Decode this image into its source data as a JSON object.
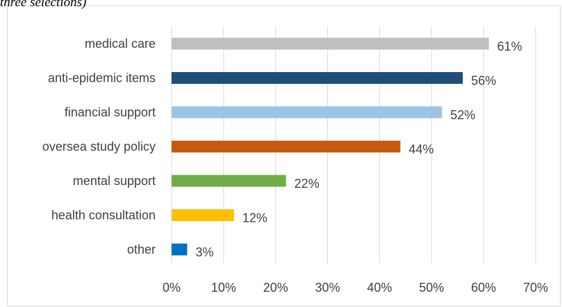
{
  "caption": "three selections)",
  "chart_data": {
    "type": "bar",
    "orientation": "horizontal",
    "title": "",
    "xlabel": "",
    "ylabel": "",
    "categories": [
      "medical care",
      "anti-epidemic items",
      "financial support",
      "oversea study policy",
      "mental support",
      "health consultation",
      "other"
    ],
    "values": [
      61,
      56,
      52,
      44,
      22,
      12,
      3
    ],
    "value_labels": [
      "61%",
      "56%",
      "52%",
      "44%",
      "22%",
      "12%",
      "3%"
    ],
    "colors": [
      "#bfbfbf",
      "#1f4e79",
      "#9dc3e6",
      "#c55a11",
      "#70ad47",
      "#ffc000",
      "#0070c0"
    ],
    "xlim": [
      0,
      70
    ],
    "xticks": [
      0,
      10,
      20,
      30,
      40,
      50,
      60,
      70
    ],
    "xtick_labels": [
      "0%",
      "10%",
      "20%",
      "30%",
      "40%",
      "50%",
      "60%",
      "70%"
    ],
    "grid": true,
    "legend": "none"
  }
}
